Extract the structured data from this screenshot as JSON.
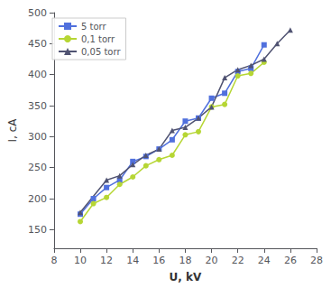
{
  "chart_data": {
    "type": "line",
    "xlabel": "U, kV",
    "ylabel": "I, сА",
    "xlim": [
      8,
      28
    ],
    "ylim": [
      120,
      500
    ],
    "xticks": [
      8,
      10,
      12,
      14,
      16,
      18,
      20,
      22,
      24,
      26,
      28
    ],
    "yticks": [
      150,
      200,
      250,
      300,
      350,
      400,
      450,
      500
    ],
    "series": [
      {
        "name": "5 torr",
        "marker": "square",
        "x": [
          10,
          11,
          12,
          13,
          14,
          15,
          16,
          17,
          18,
          19,
          20,
          21,
          22,
          23,
          24
        ],
        "values": [
          175,
          200,
          218,
          230,
          260,
          268,
          280,
          295,
          325,
          330,
          362,
          370,
          405,
          410,
          448
        ]
      },
      {
        "name": "0,1 torr",
        "marker": "circle",
        "x": [
          10,
          11,
          12,
          13,
          14,
          15,
          16,
          17,
          18,
          19,
          20,
          21,
          22,
          23,
          24
        ],
        "values": [
          163,
          192,
          202,
          223,
          235,
          253,
          263,
          270,
          303,
          308,
          348,
          352,
          398,
          402,
          420
        ]
      },
      {
        "name": "0,05 torr",
        "marker": "triangle",
        "x": [
          10,
          12,
          13,
          14,
          15,
          16,
          17,
          18,
          19,
          20,
          21,
          22,
          23,
          24,
          25,
          26
        ],
        "values": [
          178,
          230,
          237,
          255,
          270,
          280,
          310,
          315,
          330,
          348,
          395,
          408,
          415,
          425,
          450,
          472
        ]
      }
    ],
    "legend": "upper left",
    "grid": false
  }
}
